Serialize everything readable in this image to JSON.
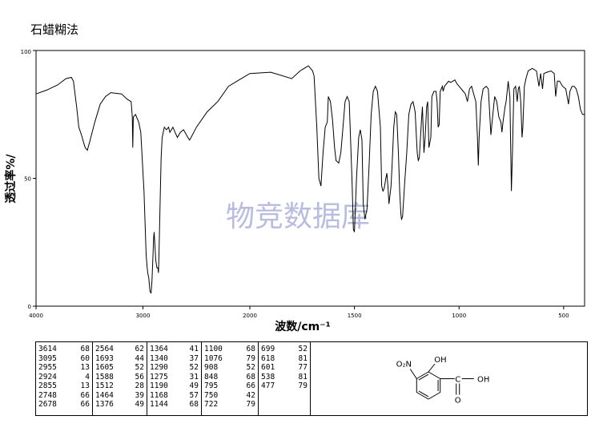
{
  "header": {
    "method": "石蜡糊法"
  },
  "watermark": "物竞数据库",
  "chart_data": {
    "type": "line",
    "title": "",
    "xlabel": "波数/cm⁻¹",
    "ylabel": "透过率%/",
    "x_reversed": true,
    "xlim": [
      4000,
      400
    ],
    "ylim": [
      0,
      100
    ],
    "x_ticks": [
      4000,
      3000,
      2000,
      1500,
      1000,
      500
    ],
    "x_tick_labels": [
      "4000",
      "3000",
      "2000",
      "1500",
      "1000",
      "500"
    ],
    "y_ticks": [
      0,
      50,
      100
    ],
    "y_tick_labels": [
      "0",
      "50",
      "100"
    ],
    "grid": false,
    "series": [
      {
        "points": [
          [
            4000,
            83
          ],
          [
            3900,
            84.5
          ],
          [
            3800,
            86.5
          ],
          [
            3720,
            89
          ],
          [
            3670,
            89.5
          ],
          [
            3650,
            88
          ],
          [
            3620,
            78
          ],
          [
            3600,
            70
          ],
          [
            3575,
            67
          ],
          [
            3555,
            64
          ],
          [
            3540,
            62
          ],
          [
            3520,
            61
          ],
          [
            3500,
            64
          ],
          [
            3450,
            72
          ],
          [
            3400,
            79
          ],
          [
            3350,
            82
          ],
          [
            3300,
            83.5
          ],
          [
            3200,
            83
          ],
          [
            3150,
            81
          ],
          [
            3110,
            80
          ],
          [
            3100,
            74
          ],
          [
            3095,
            62
          ],
          [
            3090,
            74
          ],
          [
            3070,
            75
          ],
          [
            3040,
            72
          ],
          [
            3020,
            68
          ],
          [
            2990,
            45
          ],
          [
            2970,
            20
          ],
          [
            2960,
            15
          ],
          [
            2955,
            13
          ],
          [
            2945,
            11
          ],
          [
            2935,
            6
          ],
          [
            2924,
            5
          ],
          [
            2915,
            10
          ],
          [
            2900,
            27
          ],
          [
            2895,
            29
          ],
          [
            2890,
            25
          ],
          [
            2880,
            18
          ],
          [
            2870,
            15
          ],
          [
            2860,
            15
          ],
          [
            2855,
            13
          ],
          [
            2850,
            20
          ],
          [
            2840,
            40
          ],
          [
            2830,
            58
          ],
          [
            2820,
            66
          ],
          [
            2800,
            70
          ],
          [
            2780,
            69
          ],
          [
            2760,
            70
          ],
          [
            2748,
            68
          ],
          [
            2720,
            70
          ],
          [
            2700,
            68
          ],
          [
            2678,
            66
          ],
          [
            2650,
            68
          ],
          [
            2620,
            69
          ],
          [
            2580,
            66
          ],
          [
            2564,
            65
          ],
          [
            2550,
            66
          ],
          [
            2500,
            70
          ],
          [
            2400,
            76
          ],
          [
            2300,
            80
          ],
          [
            2200,
            86
          ],
          [
            2100,
            88.5
          ],
          [
            2000,
            91
          ],
          [
            1900,
            91.5
          ],
          [
            1800,
            89
          ],
          [
            1760,
            92
          ],
          [
            1720,
            94
          ],
          [
            1700,
            92
          ],
          [
            1693,
            90
          ],
          [
            1680,
            70
          ],
          [
            1670,
            50
          ],
          [
            1660,
            47
          ],
          [
            1650,
            60
          ],
          [
            1640,
            70
          ],
          [
            1630,
            72
          ],
          [
            1625,
            82
          ],
          [
            1615,
            80
          ],
          [
            1605,
            73
          ],
          [
            1595,
            62
          ],
          [
            1588,
            57
          ],
          [
            1575,
            56
          ],
          [
            1565,
            60
          ],
          [
            1555,
            70
          ],
          [
            1545,
            80
          ],
          [
            1535,
            82
          ],
          [
            1525,
            80
          ],
          [
            1512,
            50
          ],
          [
            1505,
            30
          ],
          [
            1500,
            29
          ],
          [
            1490,
            50
          ],
          [
            1480,
            66
          ],
          [
            1472,
            69
          ],
          [
            1464,
            65
          ],
          [
            1458,
            40
          ],
          [
            1450,
            34
          ],
          [
            1440,
            38
          ],
          [
            1430,
            55
          ],
          [
            1420,
            75
          ],
          [
            1410,
            84
          ],
          [
            1400,
            86
          ],
          [
            1390,
            84
          ],
          [
            1376,
            70
          ],
          [
            1370,
            47
          ],
          [
            1364,
            45
          ],
          [
            1358,
            46
          ],
          [
            1350,
            50
          ],
          [
            1345,
            52
          ],
          [
            1340,
            47
          ],
          [
            1335,
            40
          ],
          [
            1325,
            47
          ],
          [
            1320,
            55
          ],
          [
            1312,
            70
          ],
          [
            1305,
            76
          ],
          [
            1298,
            75
          ],
          [
            1290,
            60
          ],
          [
            1284,
            45
          ],
          [
            1278,
            36
          ],
          [
            1275,
            34
          ],
          [
            1270,
            35
          ],
          [
            1260,
            48
          ],
          [
            1250,
            60
          ],
          [
            1240,
            75
          ],
          [
            1230,
            79
          ],
          [
            1220,
            80
          ],
          [
            1210,
            76
          ],
          [
            1200,
            60
          ],
          [
            1195,
            57
          ],
          [
            1190,
            58
          ],
          [
            1180,
            72
          ],
          [
            1175,
            78
          ],
          [
            1168,
            60
          ],
          [
            1162,
            66
          ],
          [
            1155,
            78
          ],
          [
            1150,
            80
          ],
          [
            1144,
            62
          ],
          [
            1135,
            66
          ],
          [
            1130,
            82
          ],
          [
            1120,
            84
          ],
          [
            1110,
            84
          ],
          [
            1105,
            80
          ],
          [
            1100,
            70
          ],
          [
            1095,
            71
          ],
          [
            1090,
            84
          ],
          [
            1080,
            86
          ],
          [
            1076,
            84
          ],
          [
            1070,
            86
          ],
          [
            1060,
            87
          ],
          [
            1050,
            88
          ],
          [
            1040,
            87.5
          ],
          [
            1030,
            88
          ],
          [
            1020,
            88.5
          ],
          [
            1010,
            87
          ],
          [
            1000,
            86
          ],
          [
            980,
            84
          ],
          [
            970,
            83
          ],
          [
            960,
            80
          ],
          [
            950,
            85
          ],
          [
            940,
            86
          ],
          [
            930,
            83
          ],
          [
            920,
            80
          ],
          [
            912,
            66
          ],
          [
            908,
            55
          ],
          [
            904,
            66
          ],
          [
            895,
            80
          ],
          [
            885,
            85
          ],
          [
            870,
            86
          ],
          [
            860,
            85
          ],
          [
            848,
            67
          ],
          [
            842,
            72
          ],
          [
            830,
            82
          ],
          [
            820,
            80
          ],
          [
            810,
            74
          ],
          [
            800,
            72
          ],
          [
            795,
            68
          ],
          [
            790,
            72
          ],
          [
            780,
            78
          ],
          [
            775,
            80
          ],
          [
            765,
            88
          ],
          [
            757,
            82
          ],
          [
            750,
            45
          ],
          [
            745,
            60
          ],
          [
            738,
            85
          ],
          [
            730,
            86
          ],
          [
            722,
            80
          ],
          [
            717,
            85
          ],
          [
            712,
            86
          ],
          [
            705,
            80
          ],
          [
            699,
            66
          ],
          [
            695,
            70
          ],
          [
            688,
            86
          ],
          [
            680,
            89
          ],
          [
            670,
            92
          ],
          [
            650,
            93
          ],
          [
            630,
            92
          ],
          [
            618,
            86
          ],
          [
            610,
            91
          ],
          [
            601,
            85
          ],
          [
            595,
            91
          ],
          [
            580,
            91.5
          ],
          [
            560,
            92
          ],
          [
            545,
            91
          ],
          [
            538,
            82
          ],
          [
            530,
            88
          ],
          [
            520,
            88
          ],
          [
            505,
            86
          ],
          [
            490,
            85
          ],
          [
            477,
            79
          ],
          [
            470,
            84
          ],
          [
            460,
            86
          ],
          [
            450,
            86
          ],
          [
            440,
            85
          ],
          [
            430,
            82
          ],
          [
            420,
            77
          ],
          [
            410,
            75
          ],
          [
            400,
            75
          ]
        ]
      }
    ]
  },
  "peak_table": {
    "columns": [
      [
        [
          "3614",
          "68"
        ],
        [
          "3095",
          "60"
        ],
        [
          "2955",
          "13"
        ],
        [
          "2924",
          "4"
        ],
        [
          "2855",
          "13"
        ],
        [
          "2748",
          "66"
        ],
        [
          "2678",
          "66"
        ]
      ],
      [
        [
          "2564",
          "62"
        ],
        [
          "1693",
          "44"
        ],
        [
          "1605",
          "52"
        ],
        [
          "1588",
          "56"
        ],
        [
          "1512",
          "28"
        ],
        [
          "1464",
          "39"
        ],
        [
          "1376",
          "49"
        ]
      ],
      [
        [
          "1364",
          "41"
        ],
        [
          "1340",
          "37"
        ],
        [
          "1290",
          "52"
        ],
        [
          "1275",
          "31"
        ],
        [
          "1190",
          "49"
        ],
        [
          "1168",
          "57"
        ],
        [
          "1144",
          "68"
        ]
      ],
      [
        [
          "1100",
          "68"
        ],
        [
          "1076",
          "79"
        ],
        [
          "908",
          "52"
        ],
        [
          "848",
          "68"
        ],
        [
          "795",
          "66"
        ],
        [
          "750",
          "42"
        ],
        [
          "722",
          "79"
        ]
      ],
      [
        [
          "699",
          "52"
        ],
        [
          "618",
          "81"
        ],
        [
          "601",
          "77"
        ],
        [
          "538",
          "81"
        ],
        [
          "477",
          "79"
        ]
      ]
    ]
  },
  "structure": {
    "nitro_label": "O₂N",
    "oh_label": "OH",
    "cooh_label": "C",
    "cooh_oh_label": "OH",
    "carbonyl_o_label": "O"
  }
}
